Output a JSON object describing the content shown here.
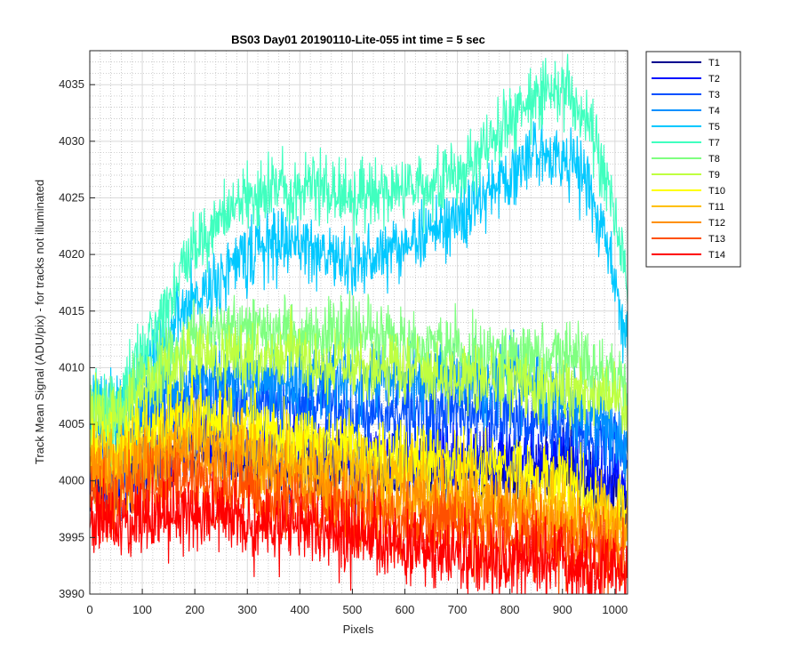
{
  "chart_data": {
    "type": "line",
    "title": "BS03 Day01 20190110-Lite-055 int time = 5 sec",
    "xlabel": "Pixels",
    "ylabel": "Track Mean Signal (ADU/pix) - for tracks not illuminated",
    "xlim": [
      0,
      1024
    ],
    "ylim": [
      3990,
      4038
    ],
    "xticks": [
      0,
      100,
      200,
      300,
      400,
      500,
      600,
      700,
      800,
      900,
      1000
    ],
    "yticks": [
      3990,
      3995,
      4000,
      4005,
      4010,
      4015,
      4020,
      4025,
      4030,
      4035
    ],
    "grid": true,
    "minor_grid": true,
    "legend_position": "outside-top-right",
    "x": [
      0,
      50,
      100,
      150,
      200,
      250,
      300,
      350,
      400,
      450,
      500,
      550,
      600,
      650,
      700,
      750,
      800,
      850,
      900,
      950,
      1000,
      1024
    ],
    "series": [
      {
        "name": "T1",
        "color": "#00008f",
        "noise": 1.6,
        "values": [
          4000,
          3999,
          4001,
          4002,
          4003,
          4003,
          4002,
          4002,
          4002,
          4002,
          4001,
          4001,
          4001,
          4001,
          4001,
          4001,
          4001,
          4001,
          4001,
          4000,
          3999,
          3998
        ]
      },
      {
        "name": "T2",
        "color": "#0010ff",
        "noise": 1.6,
        "values": [
          4001,
          4000,
          4002,
          4003,
          4004,
          4004,
          4003,
          4003,
          4003,
          4003,
          4002,
          4002,
          4002,
          4002,
          4002,
          4002,
          4002,
          4002,
          4002,
          4001,
          4000,
          3999
        ]
      },
      {
        "name": "T3",
        "color": "#0050ff",
        "noise": 1.6,
        "values": [
          4003,
          4002,
          4004,
          4006,
          4007,
          4007,
          4007,
          4007,
          4007,
          4007,
          4006,
          4006,
          4006,
          4006,
          4006,
          4006,
          4006,
          4005,
          4005,
          4004,
          4003,
          4002
        ]
      },
      {
        "name": "T4",
        "color": "#0090ff",
        "noise": 1.6,
        "values": [
          4005,
          4004,
          4006,
          4008,
          4009,
          4009,
          4009,
          4009,
          4009,
          4009,
          4009,
          4009,
          4009,
          4009,
          4009,
          4009,
          4009,
          4008,
          4007,
          4006,
          4004,
          4003
        ]
      },
      {
        "name": "T5",
        "color": "#00c8ff",
        "noise": 1.5,
        "values": [
          4007,
          4006,
          4010,
          4013,
          4016,
          4018,
          4020,
          4021,
          4021,
          4020,
          4019,
          4020,
          4021,
          4022,
          4023,
          4025,
          4027,
          4029,
          4029,
          4026,
          4018,
          4012
        ]
      },
      {
        "name": "T7",
        "color": "#40ffbf",
        "noise": 1.5,
        "values": [
          4007,
          4006,
          4011,
          4016,
          4021,
          4023,
          4025,
          4026,
          4026,
          4026,
          4025,
          4025,
          4026,
          4026,
          4027,
          4029,
          4032,
          4034,
          4035,
          4031,
          4024,
          4017
        ]
      },
      {
        "name": "T8",
        "color": "#7fff80",
        "noise": 1.5,
        "values": [
          4007,
          4006,
          4009,
          4011,
          4013,
          4013,
          4013,
          4013,
          4013,
          4013,
          4013,
          4013,
          4012,
          4012,
          4012,
          4011,
          4011,
          4011,
          4011,
          4010,
          4009,
          4008
        ]
      },
      {
        "name": "T9",
        "color": "#bfff40",
        "noise": 1.5,
        "values": [
          4006,
          4005,
          4008,
          4010,
          4011,
          4011,
          4011,
          4011,
          4011,
          4010,
          4010,
          4010,
          4010,
          4009,
          4009,
          4009,
          4009,
          4008,
          4008,
          4008,
          4007,
          4006
        ]
      },
      {
        "name": "T10",
        "color": "#ffff00",
        "noise": 1.6,
        "values": [
          4003,
          4002,
          4004,
          4005,
          4006,
          4005,
          4005,
          4004,
          4004,
          4003,
          4003,
          4002,
          4002,
          4002,
          4001,
          4001,
          4001,
          4000,
          4000,
          3999,
          3998,
          3998
        ]
      },
      {
        "name": "T11",
        "color": "#ffc000",
        "noise": 1.6,
        "values": [
          4002,
          4001,
          4002,
          4003,
          4004,
          4003,
          4003,
          4002,
          4002,
          4001,
          4001,
          4000,
          4000,
          3999,
          3999,
          3999,
          3998,
          3998,
          3998,
          3997,
          3997,
          3996
        ]
      },
      {
        "name": "T12",
        "color": "#ff9000",
        "noise": 1.6,
        "values": [
          4001,
          4000,
          4001,
          4002,
          4002,
          4002,
          4001,
          4000,
          4000,
          3999,
          3999,
          3998,
          3998,
          3998,
          3997,
          3997,
          3997,
          3997,
          3996,
          3996,
          3995,
          3995
        ]
      },
      {
        "name": "T13",
        "color": "#ff5000",
        "noise": 1.6,
        "values": [
          3999,
          3998,
          3999,
          4000,
          4000,
          3999,
          3999,
          3998,
          3998,
          3997,
          3997,
          3997,
          3996,
          3996,
          3996,
          3995,
          3995,
          3995,
          3994,
          3994,
          3993,
          3993
        ]
      },
      {
        "name": "T14",
        "color": "#ff0000",
        "noise": 1.7,
        "values": [
          3997,
          3996,
          3997,
          3997,
          3997,
          3997,
          3996,
          3996,
          3996,
          3995,
          3995,
          3995,
          3994,
          3994,
          3994,
          3993,
          3993,
          3993,
          3993,
          3992,
          3992,
          3992
        ]
      }
    ]
  }
}
